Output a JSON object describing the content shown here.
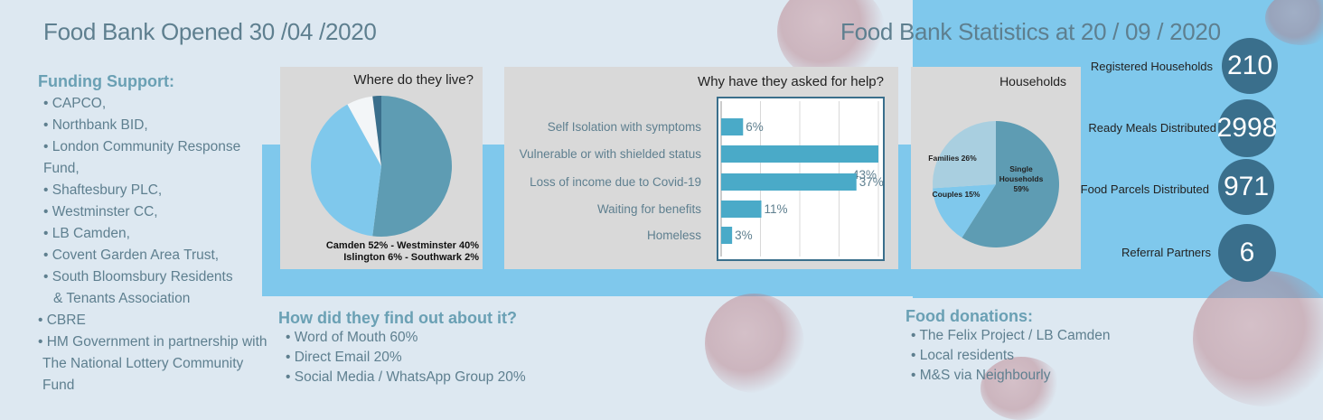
{
  "headings": {
    "opened": "Food Bank Opened 30 /04 /2020",
    "statistics": "Food Bank Statistics at 20 / 09 / 2020"
  },
  "funding": {
    "title": "Funding Support:",
    "items": [
      "• CAPCO,",
      "• Northbank BID,",
      "• London Community Response Fund,",
      "• Shaftesbury PLC,",
      "• Westminster CC,",
      "• LB Camden,",
      "• Covent Garden Area Trust,",
      "• South Bloomsbury Residents",
      "& Tenants Association",
      "•  CBRE",
      "•  HM Government in partnership with",
      "The National Lottery Community Fund"
    ]
  },
  "found_out": {
    "title": "How did they find out about it?",
    "items": [
      "• Word of Mouth 60%",
      "• Direct Email 20%",
      "• Social Media / WhatsApp Group 20%"
    ]
  },
  "donations": {
    "title": "Food donations:",
    "items": [
      "• The Felix Project / LB Camden",
      "• Local residents",
      "• M&S via Neighbourly"
    ]
  },
  "stats": [
    {
      "label": "Registered Households",
      "value": "210"
    },
    {
      "label": "Ready Meals Distributed",
      "value": "2998"
    },
    {
      "label": "Food Parcels Distributed",
      "value": "971"
    },
    {
      "label": "Referral Partners",
      "value": "6"
    }
  ],
  "chart_data": [
    {
      "type": "pie",
      "title": "Where do they live?",
      "labels": [
        "Camden",
        "Westminster",
        "Islington",
        "Southwark"
      ],
      "values": [
        52,
        40,
        6,
        2
      ],
      "colors": [
        "#5e9cb3",
        "#7fc8ec",
        "#f3f6f8",
        "#3a6f8c"
      ],
      "caption_lines": [
        "Camden 52% - Westminster 40%",
        "Islington 6% - Southwark 2%"
      ]
    },
    {
      "type": "bar",
      "orientation": "horizontal",
      "title": "Why have they asked for help?",
      "categories": [
        "Self Isolation with symptoms",
        "Vulnerable or with shielded status",
        "Loss of income due to Covid-19",
        "Waiting for benefits",
        "Homeless"
      ],
      "values": [
        6,
        43,
        37,
        11,
        3
      ],
      "value_labels": [
        "6%",
        "43%",
        "37%",
        "11%",
        "3%"
      ],
      "xlim": [
        0,
        43
      ],
      "color": "#4aaac8",
      "grid": true
    },
    {
      "type": "pie",
      "title": "Households",
      "labels": [
        "Single Households",
        "Couples",
        "Families"
      ],
      "values": [
        59,
        15,
        26
      ],
      "value_labels": [
        "59%",
        "15%",
        "26%"
      ],
      "colors": [
        "#5e9cb3",
        "#7fc8ec",
        "#a9cfe0"
      ]
    }
  ]
}
